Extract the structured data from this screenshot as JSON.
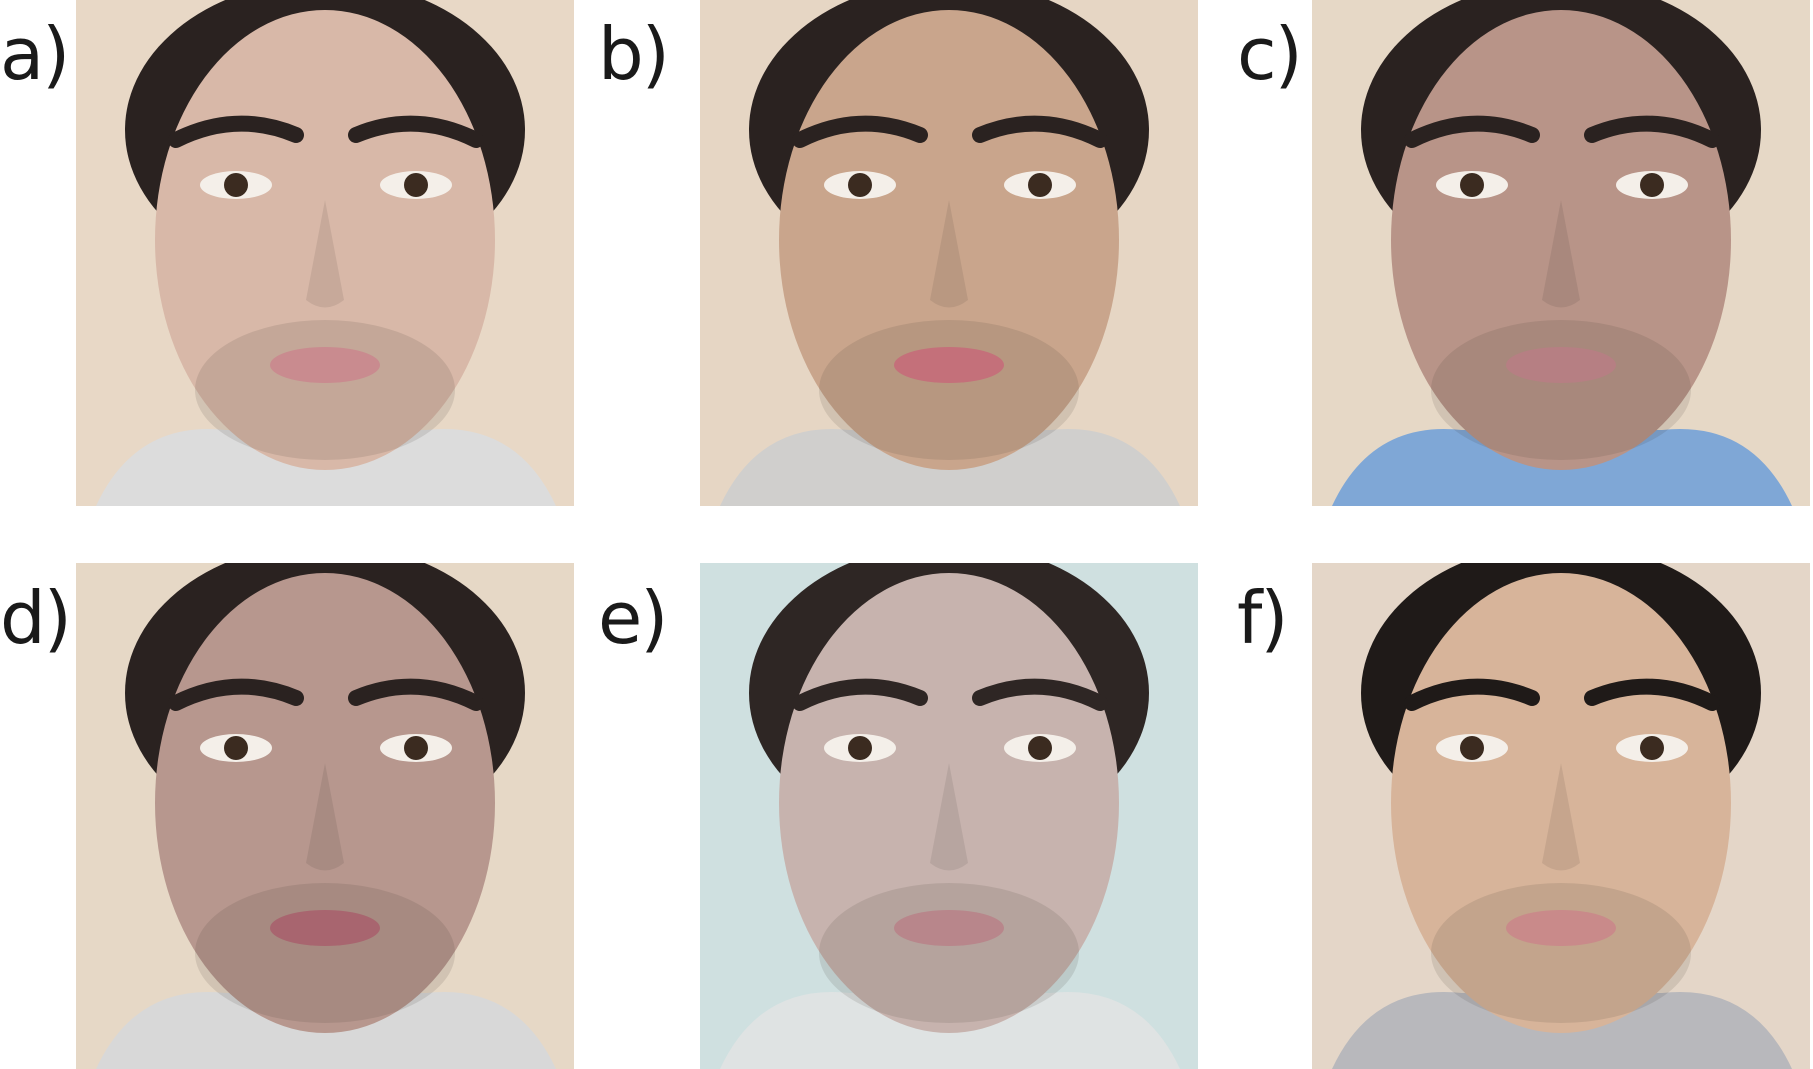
{
  "panels": [
    {
      "label": "a)",
      "background": "#e8d8c6",
      "skin": "#d8b8a8",
      "hair": "#2a2220",
      "shirt": "#dcdcdc",
      "lips": "#c98b8f"
    },
    {
      "label": "b)",
      "background": "#e6d6c4",
      "skin": "#c9a58c",
      "hair": "#2a2220",
      "shirt": "#d0cfcd",
      "lips": "#c4707a"
    },
    {
      "label": "c)",
      "background": "#e6d8c6",
      "skin": "#b89488",
      "hair": "#2a2220",
      "shirt": "#7fa7d6",
      "lips": "#b67f83"
    },
    {
      "label": "d)",
      "background": "#e6d8c6",
      "skin": "#b7978e",
      "hair": "#2a2220",
      "shirt": "#d8d8d8",
      "lips": "#a8656f"
    },
    {
      "label": "e)",
      "background": "#cfe0e0",
      "skin": "#c7b3ae",
      "hair": "#2e2624",
      "shirt": "#dfe3e3",
      "lips": "#b8868b"
    },
    {
      "label": "f)",
      "background": "#e4d6c8",
      "skin": "#d7b49a",
      "hair": "#1f1a18",
      "shirt": "#b8b8bc",
      "lips": "#c98a8a"
    }
  ]
}
